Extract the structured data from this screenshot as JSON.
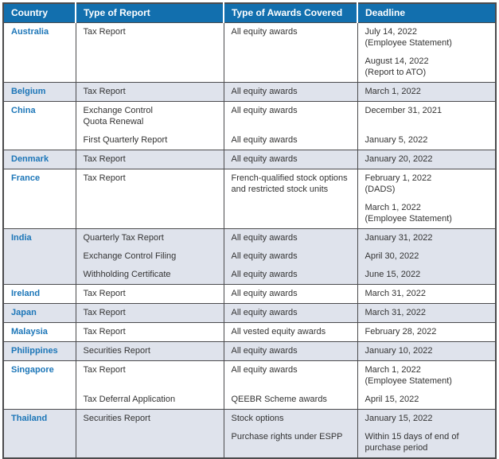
{
  "colors": {
    "header_bg": "#126fae",
    "header_text": "#ffffff",
    "header_divider": "#ffffff",
    "country_text": "#1c76b8",
    "body_text": "#333333",
    "shaded_row_bg": "#dfe3ec",
    "border": "#4b4b4d",
    "page_bg": "#ffffff"
  },
  "table": {
    "columns": [
      "Country",
      "Type of Report",
      "Type of Awards Covered",
      "Deadline"
    ],
    "rows": [
      {
        "country": "Australia",
        "entries": [
          {
            "report": "Tax Report",
            "awards": "All equity awards",
            "deadline": "July 14, 2022\n(Employee Statement)"
          },
          {
            "report": "",
            "awards": "",
            "deadline": "August 14, 2022\n(Report to ATO)"
          }
        ]
      },
      {
        "country": "Belgium",
        "entries": [
          {
            "report": "Tax Report",
            "awards": "All equity awards",
            "deadline": "March 1, 2022"
          }
        ]
      },
      {
        "country": "China",
        "entries": [
          {
            "report": "Exchange Control\nQuota Renewal",
            "awards": "All equity awards",
            "deadline": "December 31, 2021"
          },
          {
            "report": "First Quarterly Report",
            "awards": "All equity awards",
            "deadline": "January 5, 2022"
          }
        ]
      },
      {
        "country": "Denmark",
        "entries": [
          {
            "report": "Tax Report",
            "awards": "All equity awards",
            "deadline": "January 20, 2022"
          }
        ]
      },
      {
        "country": "France",
        "entries": [
          {
            "report": "Tax Report",
            "awards": "French-qualified stock options\nand restricted stock units",
            "deadline": "February 1, 2022\n(DADS)"
          },
          {
            "report": "",
            "awards": "",
            "deadline": "March 1, 2022\n(Employee Statement)"
          }
        ]
      },
      {
        "country": "India",
        "entries": [
          {
            "report": "Quarterly Tax Report",
            "awards": "All equity awards",
            "deadline": "January 31, 2022"
          },
          {
            "report": "Exchange Control Filing",
            "awards": "All equity awards",
            "deadline": "April 30, 2022"
          },
          {
            "report": "Withholding Certificate",
            "awards": "All equity awards",
            "deadline": "June 15, 2022"
          }
        ]
      },
      {
        "country": "Ireland",
        "entries": [
          {
            "report": "Tax Report",
            "awards": "All equity awards",
            "deadline": "March 31, 2022"
          }
        ]
      },
      {
        "country": "Japan",
        "entries": [
          {
            "report": "Tax Report",
            "awards": "All equity awards",
            "deadline": "March 31, 2022"
          }
        ]
      },
      {
        "country": "Malaysia",
        "entries": [
          {
            "report": "Tax Report",
            "awards": "All vested equity awards",
            "deadline": "February 28, 2022"
          }
        ]
      },
      {
        "country": "Philippines",
        "entries": [
          {
            "report": "Securities Report",
            "awards": "All equity awards",
            "deadline": "January 10, 2022"
          }
        ]
      },
      {
        "country": "Singapore",
        "entries": [
          {
            "report": "Tax Report",
            "awards": "All equity awards",
            "deadline": "March 1, 2022\n(Employee Statement)"
          },
          {
            "report": "Tax Deferral Application",
            "awards": "QEEBR Scheme awards",
            "deadline": "April 15, 2022"
          }
        ]
      },
      {
        "country": "Thailand",
        "entries": [
          {
            "report": "Securities Report",
            "awards": "Stock options",
            "deadline": "January 15, 2022"
          },
          {
            "report": "",
            "awards": "Purchase rights under ESPP",
            "deadline": "Within 15 days of end of\npurchase period"
          }
        ]
      }
    ]
  }
}
